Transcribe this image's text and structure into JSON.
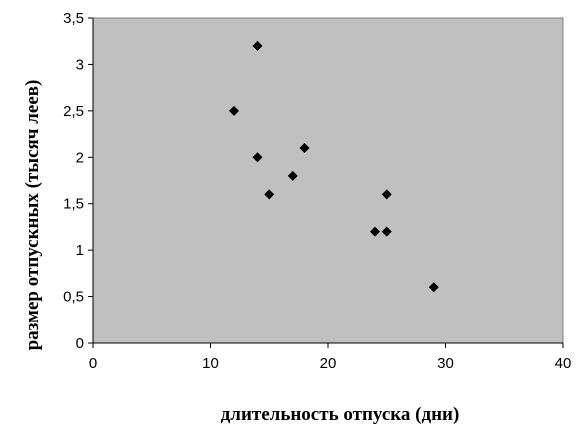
{
  "chart_data": {
    "type": "scatter",
    "title": "",
    "xlabel": "длительность отпуска (дни)",
    "ylabel": "размер отпускных (тысяч леев)",
    "xlim": [
      0,
      40
    ],
    "ylim": [
      0,
      3.5
    ],
    "x_ticks": [
      "0",
      "10",
      "20",
      "30",
      "40"
    ],
    "y_ticks": [
      "0",
      "0,5",
      "1",
      "1,5",
      "2",
      "2,5",
      "3",
      "3,5"
    ],
    "grid": false,
    "legend": "none",
    "plot_background": "#c0c0c0",
    "marker_color": "#000000",
    "marker": "diamond",
    "points": [
      {
        "x": 12,
        "y": 2.5
      },
      {
        "x": 14,
        "y": 3.2
      },
      {
        "x": 14,
        "y": 2.0
      },
      {
        "x": 15,
        "y": 1.6
      },
      {
        "x": 17,
        "y": 1.8
      },
      {
        "x": 18,
        "y": 2.1
      },
      {
        "x": 24,
        "y": 1.2
      },
      {
        "x": 25,
        "y": 1.6
      },
      {
        "x": 25,
        "y": 1.2
      },
      {
        "x": 29,
        "y": 0.6
      }
    ]
  }
}
